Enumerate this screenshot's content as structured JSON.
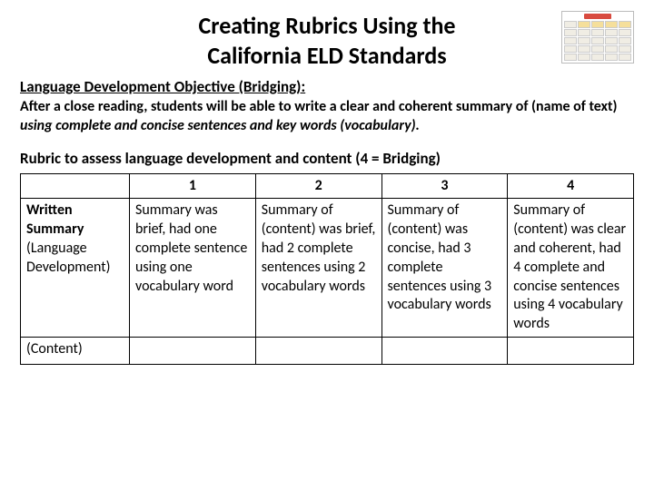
{
  "title_line1": "Creating Rubrics Using the",
  "title_line2": "California ELD Standards",
  "subheading": "Language Development Objective (Bridging):",
  "objective_plain": "After a close reading, students will be able to write a clear and coherent summary of (name of text) ",
  "objective_em": "using complete and concise sentences and key words (vocabulary).",
  "rubric_heading": "Rubric to assess language development and content (4 = Bridging)",
  "columns": {
    "c1": "1",
    "c2": "2",
    "c3": "3",
    "c4": "4"
  },
  "row1": {
    "label_bold": "Written Summary",
    "label_rest": "(Language Development)",
    "c1": "Summary was brief, had one complete sentence using one vocabulary word",
    "c2": "Summary of (content) was brief, had 2 complete sentences using 2 vocabulary words",
    "c3": "Summary of (content) was concise, had 3 complete sentences using 3 vocabulary words",
    "c4": "Summary of (content) was clear and coherent, had 4 complete and concise sentences using 4 vocabulary words"
  },
  "row2": {
    "label": "(Content)"
  },
  "colors": {
    "text": "#000000",
    "background": "#ffffff",
    "border": "#000000",
    "thumb_accent": "#d84a3f",
    "thumb_hl": "#f5df9b"
  },
  "fontsize": {
    "title": 26,
    "body": 16,
    "subhead": 17
  }
}
